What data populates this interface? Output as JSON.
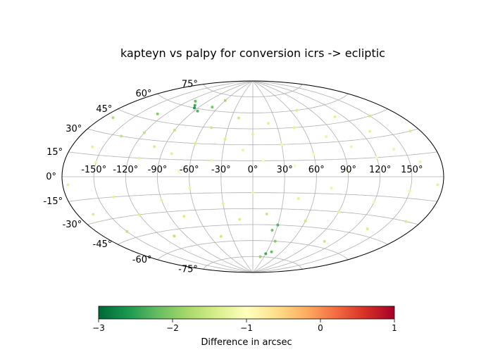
{
  "chart_data": {
    "type": "scatter",
    "projection": "aitoff",
    "title": "kapteyn vs palpy for conversion icrs -> ecliptic",
    "lon_ticks": [
      "-150°",
      "-120°",
      "-90°",
      "-60°",
      "-30°",
      "0°",
      "30°",
      "60°",
      "90°",
      "120°",
      "150°"
    ],
    "lon_tick_values": [
      -150,
      -120,
      -90,
      -60,
      -30,
      0,
      30,
      60,
      90,
      120,
      150
    ],
    "lat_ticks": [
      "75°",
      "60°",
      "45°",
      "30°",
      "15°",
      "0°",
      "-15°",
      "-30°",
      "-45°",
      "-60°",
      "-75°"
    ],
    "lat_tick_values": [
      75,
      60,
      45,
      30,
      15,
      0,
      -15,
      -30,
      -45,
      -60,
      -75
    ],
    "grid": true,
    "colorbar": {
      "label": "Difference in arcsec",
      "ticks": [
        "−3",
        "−2",
        "−1",
        "0",
        "1"
      ],
      "tick_values": [
        -3,
        -2,
        -1,
        0,
        1
      ],
      "range": [
        -3,
        1
      ],
      "colormap": "RdYlGn_r",
      "colors": [
        "#006837",
        "#1a9850",
        "#66bd63",
        "#a6d96a",
        "#d9ef8b",
        "#ffffbf",
        "#fee08b",
        "#fdae61",
        "#f46d43",
        "#d73027",
        "#a50026"
      ]
    },
    "points": [
      {
        "lon": -170,
        "lat": 40,
        "value": -1.7
      },
      {
        "lon": -160,
        "lat": 20,
        "value": -1.3
      },
      {
        "lon": -150,
        "lat": 10,
        "value": -1.2
      },
      {
        "lon": -140,
        "lat": 30,
        "value": -1.6
      },
      {
        "lon": -130,
        "lat": 50,
        "value": -2.0
      },
      {
        "lon": -120,
        "lat": 35,
        "value": -1.6
      },
      {
        "lon": -110,
        "lat": 15,
        "value": -1.3
      },
      {
        "lon": -100,
        "lat": 25,
        "value": -1.4
      },
      {
        "lon": -90,
        "lat": 40,
        "value": -1.6
      },
      {
        "lon": -80,
        "lat": 20,
        "value": -1.3
      },
      {
        "lon": -70,
        "lat": 5,
        "value": -1.1
      },
      {
        "lon": -60,
        "lat": 30,
        "value": -1.4
      },
      {
        "lon": -50,
        "lat": 45,
        "value": -1.5
      },
      {
        "lon": -40,
        "lat": 15,
        "value": -1.2
      },
      {
        "lon": -30,
        "lat": 35,
        "value": -1.4
      },
      {
        "lon": -20,
        "lat": 55,
        "value": -1.5
      },
      {
        "lon": -10,
        "lat": 25,
        "value": -1.2
      },
      {
        "lon": 0,
        "lat": 40,
        "value": -1.3
      },
      {
        "lon": 10,
        "lat": 15,
        "value": -1.1
      },
      {
        "lon": 20,
        "lat": 50,
        "value": -1.3
      },
      {
        "lon": 30,
        "lat": 30,
        "value": -1.2
      },
      {
        "lon": 40,
        "lat": 10,
        "value": -1.1
      },
      {
        "lon": 50,
        "lat": 45,
        "value": -1.3
      },
      {
        "lon": 60,
        "lat": 20,
        "value": -1.1
      },
      {
        "lon": 70,
        "lat": 60,
        "value": -1.4
      },
      {
        "lon": 80,
        "lat": 35,
        "value": -1.2
      },
      {
        "lon": 90,
        "lat": 5,
        "value": -1.1
      },
      {
        "lon": 100,
        "lat": 25,
        "value": -1.2
      },
      {
        "lon": 110,
        "lat": 50,
        "value": -1.3
      },
      {
        "lon": 120,
        "lat": 15,
        "value": -1.1
      },
      {
        "lon": 130,
        "lat": 35,
        "value": -1.3
      },
      {
        "lon": 140,
        "lat": 20,
        "value": -1.2
      },
      {
        "lon": 150,
        "lat": 45,
        "value": -1.5
      },
      {
        "lon": 160,
        "lat": 10,
        "value": -1.2
      },
      {
        "lon": 170,
        "lat": 30,
        "value": -1.4
      },
      {
        "lon": -175,
        "lat": -5,
        "value": -1.3
      },
      {
        "lon": -165,
        "lat": -25,
        "value": -1.4
      },
      {
        "lon": -150,
        "lat": -40,
        "value": -1.6
      },
      {
        "lon": -135,
        "lat": -15,
        "value": -1.3
      },
      {
        "lon": -120,
        "lat": -30,
        "value": -1.4
      },
      {
        "lon": -105,
        "lat": -50,
        "value": -1.6
      },
      {
        "lon": -90,
        "lat": -20,
        "value": -1.3
      },
      {
        "lon": -75,
        "lat": -35,
        "value": -1.4
      },
      {
        "lon": -60,
        "lat": -10,
        "value": -1.2
      },
      {
        "lon": -45,
        "lat": -55,
        "value": -1.5
      },
      {
        "lon": -30,
        "lat": -25,
        "value": -1.3
      },
      {
        "lon": -15,
        "lat": -40,
        "value": -1.4
      },
      {
        "lon": 0,
        "lat": -15,
        "value": -1.2
      },
      {
        "lon": 15,
        "lat": -35,
        "value": -1.5
      },
      {
        "lon": 25,
        "lat": -50,
        "value": -2.1
      },
      {
        "lon": 30,
        "lat": -45,
        "value": -2.3
      },
      {
        "lon": 35,
        "lat": -60,
        "value": -2.0
      },
      {
        "lon": 45,
        "lat": -20,
        "value": -1.3
      },
      {
        "lon": 60,
        "lat": -40,
        "value": -1.5
      },
      {
        "lon": 75,
        "lat": -10,
        "value": -1.2
      },
      {
        "lon": 90,
        "lat": -30,
        "value": -1.3
      },
      {
        "lon": 105,
        "lat": -55,
        "value": -1.5
      },
      {
        "lon": 120,
        "lat": -20,
        "value": -1.2
      },
      {
        "lon": 135,
        "lat": -40,
        "value": -1.4
      },
      {
        "lon": 150,
        "lat": -10,
        "value": -1.2
      },
      {
        "lon": 165,
        "lat": -30,
        "value": -1.4
      },
      {
        "lon": 175,
        "lat": -5,
        "value": -1.3
      },
      {
        "lon": -100,
        "lat": 62,
        "value": -2.4
      },
      {
        "lon": -95,
        "lat": 60,
        "value": -2.6
      },
      {
        "lon": -85,
        "lat": 58,
        "value": -2.3
      },
      {
        "lon": -110,
        "lat": 65,
        "value": -2.2
      },
      {
        "lon": -70,
        "lat": 63,
        "value": -2.1
      },
      {
        "lon": -60,
        "lat": 70,
        "value": -1.8
      },
      {
        "lon": 30,
        "lat": -72,
        "value": -2.4
      },
      {
        "lon": 40,
        "lat": -70,
        "value": -2.2
      },
      {
        "lon": 20,
        "lat": -75,
        "value": -1.9
      }
    ]
  }
}
